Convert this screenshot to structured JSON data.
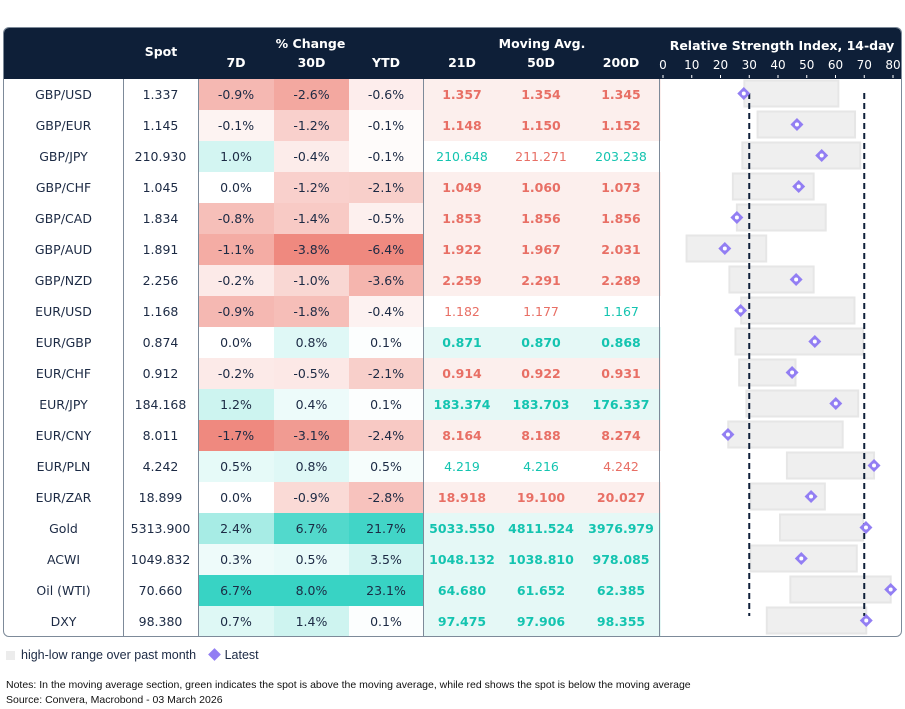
{
  "header": {
    "spot": "Spot",
    "pct_change": "% Change",
    "d7": "7D",
    "d30": "30D",
    "ytd": "YTD",
    "moving_avg": "Moving Avg.",
    "ma21": "21D",
    "ma50": "50D",
    "ma200": "200D",
    "rsi_title": "Relative Strength Index, 14-day"
  },
  "colors": {
    "negative": "#ee8378",
    "positive": "#2dd1c1",
    "ma_red": "#e86f65",
    "ma_green": "#14c4b0",
    "ma_red_bg": "#fcefed",
    "ma_green_bg": "#e5f8f6",
    "header_bg": "#0e1f38",
    "range_bar": "#efefef",
    "latest_marker": "#927ef3",
    "threshold_line": "#0e1f38"
  },
  "chart_data": {
    "type": "range-dot",
    "title": "Relative Strength Index, 14-day",
    "xlim": [
      0,
      80
    ],
    "ticks": [
      0,
      10,
      20,
      30,
      40,
      50,
      60,
      70,
      80
    ],
    "thresholds": [
      30,
      70
    ],
    "categories": [
      "GBP/USD",
      "GBP/EUR",
      "GBP/JPY",
      "GBP/CHF",
      "GBP/CAD",
      "GBP/AUD",
      "GBP/NZD",
      "EUR/USD",
      "EUR/GBP",
      "EUR/CHF",
      "EUR/JPY",
      "EUR/CNY",
      "EUR/PLN",
      "EUR/ZAR",
      "Gold",
      "ACWI",
      "Oil (WTI)",
      "DXY"
    ],
    "series": [
      {
        "name": "high-low range over past month",
        "low": [
          28.3,
          32.9,
          27.6,
          24.3,
          25.7,
          8.2,
          23.1,
          27.2,
          25.2,
          26.5,
          29.0,
          22.7,
          43.1,
          30.4,
          40.7,
          30.4,
          44.3,
          36.1
        ],
        "high": [
          61.0,
          66.8,
          68.6,
          52.4,
          56.6,
          35.9,
          52.4,
          66.6,
          69.6,
          46.1,
          67.9,
          62.5,
          73.4,
          56.3,
          69.6,
          67.4,
          79.2,
          70.7
        ]
      },
      {
        "name": "Latest",
        "values": [
          28.1,
          46.6,
          55.2,
          47.2,
          25.7,
          21.5,
          46.3,
          27.0,
          52.8,
          44.9,
          60.1,
          22.6,
          73.4,
          51.5,
          70.6,
          48.1,
          79.2,
          70.7
        ]
      }
    ]
  },
  "rows": [
    {
      "name": "GBP/USD",
      "spot": "1.337",
      "d7": -0.9,
      "d30": -2.6,
      "ytd": -0.6,
      "ma": [
        "1.357",
        "1.354",
        "1.345"
      ]
    },
    {
      "name": "GBP/EUR",
      "spot": "1.145",
      "d7": -0.1,
      "d30": -1.2,
      "ytd": -0.1,
      "ma": [
        "1.148",
        "1.150",
        "1.152"
      ]
    },
    {
      "name": "GBP/JPY",
      "spot": "210.930",
      "d7": 1.0,
      "d30": -0.4,
      "ytd": -0.1,
      "ma": [
        "210.648",
        "211.271",
        "203.238"
      ]
    },
    {
      "name": "GBP/CHF",
      "spot": "1.045",
      "d7": 0.0,
      "d30": -1.2,
      "ytd": -2.1,
      "ma": [
        "1.049",
        "1.060",
        "1.073"
      ]
    },
    {
      "name": "GBP/CAD",
      "spot": "1.834",
      "d7": -0.8,
      "d30": -1.4,
      "ytd": -0.5,
      "ma": [
        "1.853",
        "1.856",
        "1.856"
      ]
    },
    {
      "name": "GBP/AUD",
      "spot": "1.891",
      "d7": -1.1,
      "d30": -3.8,
      "ytd": -6.4,
      "ma": [
        "1.922",
        "1.967",
        "2.031"
      ]
    },
    {
      "name": "GBP/NZD",
      "spot": "2.256",
      "d7": -0.2,
      "d30": -1.0,
      "ytd": -3.6,
      "ma": [
        "2.259",
        "2.291",
        "2.289"
      ]
    },
    {
      "name": "EUR/USD",
      "spot": "1.168",
      "d7": -0.9,
      "d30": -1.8,
      "ytd": -0.4,
      "ma": [
        "1.182",
        "1.177",
        "1.167"
      ]
    },
    {
      "name": "EUR/GBP",
      "spot": "0.874",
      "d7": 0.0,
      "d30": 0.8,
      "ytd": 0.1,
      "ma": [
        "0.871",
        "0.870",
        "0.868"
      ]
    },
    {
      "name": "EUR/CHF",
      "spot": "0.912",
      "d7": -0.2,
      "d30": -0.5,
      "ytd": -2.1,
      "ma": [
        "0.914",
        "0.922",
        "0.931"
      ]
    },
    {
      "name": "EUR/JPY",
      "spot": "184.168",
      "d7": 1.2,
      "d30": 0.4,
      "ytd": 0.1,
      "ma": [
        "183.374",
        "183.703",
        "176.337"
      ]
    },
    {
      "name": "EUR/CNY",
      "spot": "8.011",
      "d7": -1.7,
      "d30": -3.1,
      "ytd": -2.4,
      "ma": [
        "8.164",
        "8.188",
        "8.274"
      ]
    },
    {
      "name": "EUR/PLN",
      "spot": "4.242",
      "d7": 0.5,
      "d30": 0.8,
      "ytd": 0.5,
      "ma": [
        "4.219",
        "4.216",
        "4.242"
      ]
    },
    {
      "name": "EUR/ZAR",
      "spot": "18.899",
      "d7": 0.0,
      "d30": -0.9,
      "ytd": -2.8,
      "ma": [
        "18.918",
        "19.100",
        "20.027"
      ]
    },
    {
      "name": "Gold",
      "spot": "5313.900",
      "d7": 2.4,
      "d30": 6.7,
      "ytd": 21.7,
      "ma": [
        "5033.550",
        "4811.524",
        "3976.979"
      ]
    },
    {
      "name": "ACWI",
      "spot": "1049.832",
      "d7": 0.3,
      "d30": 0.5,
      "ytd": 3.5,
      "ma": [
        "1048.132",
        "1038.810",
        "978.085"
      ]
    },
    {
      "name": "Oil (WTI)",
      "spot": "70.660",
      "d7": 6.7,
      "d30": 8.0,
      "ytd": 23.1,
      "ma": [
        "64.680",
        "61.652",
        "62.385"
      ]
    },
    {
      "name": "DXY",
      "spot": "98.380",
      "d7": 0.7,
      "d30": 1.4,
      "ytd": 0.1,
      "ma": [
        "97.475",
        "97.906",
        "98.355"
      ]
    }
  ],
  "legend": {
    "range": "high-low range over past month",
    "latest": "Latest"
  },
  "notes": "Notes: In the moving average section, green indicates the spot is above the moving average, while red shows the spot is below the moving average",
  "source": "Source: Convera, Macrobond - 03 March 2026"
}
